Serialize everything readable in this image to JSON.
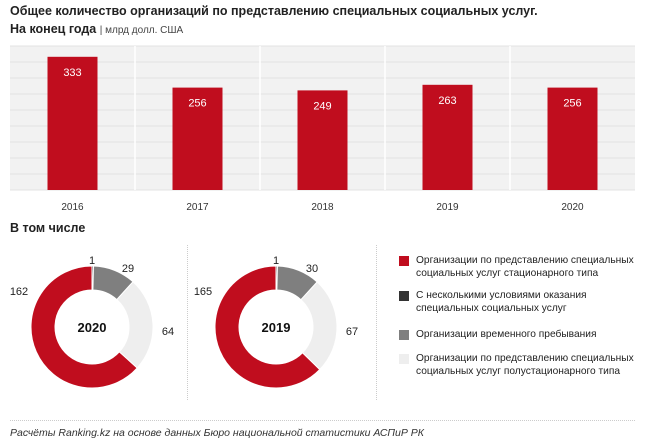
{
  "header": {
    "title": "Общее количество организаций по представлению специальных социальных услуг.",
    "subtitle": "На конец года",
    "unit": "| млрд долл. США"
  },
  "chart_data": [
    {
      "type": "bar",
      "categories": [
        "2016",
        "2017",
        "2018",
        "2019",
        "2020"
      ],
      "values": [
        333,
        256,
        249,
        263,
        256
      ],
      "ylim": [
        0,
        360
      ],
      "grid": true,
      "bar_color": "#c00d1e"
    },
    {
      "type": "pie",
      "title": "2020",
      "labels": [
        "Организации по представлению специальных социальных услуг стационарного типа",
        "С несколькими условиями оказания специальных социальных услуг",
        "Организации временного пребывания",
        "Организации по представлению специальных социальных услуг полустационарного типа"
      ],
      "values": [
        162,
        1,
        29,
        64
      ],
      "colors": [
        "#c00d1e",
        "#333333",
        "#7f7f7f",
        "#eeeeee"
      ]
    },
    {
      "type": "pie",
      "title": "2019",
      "labels": [
        "Организации по представлению специальных социальных услуг стационарного типа",
        "С несколькими условиями оказания специальных социальных услуг",
        "Организации временного пребывания",
        "Организации по представлению специальных социальных услуг полустационарного типа"
      ],
      "values": [
        165,
        1,
        30,
        67
      ],
      "colors": [
        "#c00d1e",
        "#333333",
        "#7f7f7f",
        "#eeeeee"
      ]
    }
  ],
  "section_header": "В том числе",
  "legend": [
    {
      "label": "Организации по представлению специальных социальных услуг стационарного типа",
      "color": "#c00d1e"
    },
    {
      "label": "С несколькими условиями оказания специальных социальных услуг",
      "color": "#333333"
    },
    {
      "label": "Организации временного пребывания",
      "color": "#7f7f7f"
    },
    {
      "label": "Организации по представлению специальных социальных услуг полустационарного типа",
      "color": "#eeeeee"
    }
  ],
  "footer": "Расчёты Ranking.kz на основе данных Бюро национальной статистики АСПиР РК"
}
